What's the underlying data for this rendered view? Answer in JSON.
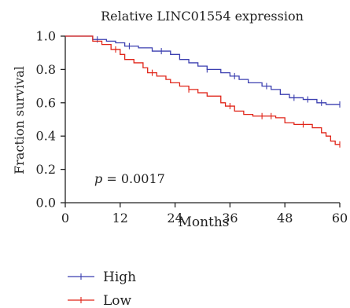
{
  "chart_data": {
    "type": "line",
    "title": "Relative LINC01554 expression",
    "xlabel": "Months",
    "ylabel": "Fraction survival",
    "xlim": [
      0,
      60
    ],
    "ylim": [
      0,
      1.0
    ],
    "xticks": [
      0,
      12,
      24,
      36,
      48,
      60
    ],
    "yticks": [
      0.0,
      0.2,
      0.4,
      0.6,
      0.8,
      1.0
    ],
    "x_tick_labels": [
      "0",
      "12",
      "24",
      "36",
      "48",
      "60"
    ],
    "y_tick_labels": [
      "0.0",
      "0.2",
      "0.4",
      "0.6",
      "0.8",
      "1.0"
    ],
    "annotation": {
      "p_symbol": "p",
      "text": " = 0.0017"
    },
    "legend_position": "bottom-left",
    "series": [
      {
        "name": "High",
        "color": "#3b3fb0",
        "steps": [
          [
            0,
            1.0
          ],
          [
            6,
            0.98
          ],
          [
            9,
            0.97
          ],
          [
            11,
            0.96
          ],
          [
            13,
            0.94
          ],
          [
            16,
            0.93
          ],
          [
            19,
            0.91
          ],
          [
            23,
            0.89
          ],
          [
            25,
            0.86
          ],
          [
            27,
            0.84
          ],
          [
            29,
            0.82
          ],
          [
            31,
            0.8
          ],
          [
            34,
            0.78
          ],
          [
            36,
            0.76
          ],
          [
            38,
            0.74
          ],
          [
            40,
            0.72
          ],
          [
            43,
            0.7
          ],
          [
            45,
            0.68
          ],
          [
            47,
            0.65
          ],
          [
            49,
            0.63
          ],
          [
            52,
            0.62
          ],
          [
            55,
            0.6
          ],
          [
            57,
            0.59
          ],
          [
            60,
            0.59
          ]
        ],
        "censor_x": [
          7,
          14,
          21,
          31,
          37,
          44,
          50,
          53,
          56,
          60
        ]
      },
      {
        "name": "Low",
        "color": "#e02418",
        "steps": [
          [
            0,
            1.0
          ],
          [
            6,
            0.97
          ],
          [
            8,
            0.95
          ],
          [
            10,
            0.92
          ],
          [
            12,
            0.89
          ],
          [
            13,
            0.86
          ],
          [
            15,
            0.84
          ],
          [
            17,
            0.81
          ],
          [
            18,
            0.78
          ],
          [
            20,
            0.76
          ],
          [
            22,
            0.74
          ],
          [
            23,
            0.72
          ],
          [
            25,
            0.7
          ],
          [
            27,
            0.68
          ],
          [
            29,
            0.66
          ],
          [
            31,
            0.64
          ],
          [
            34,
            0.6
          ],
          [
            35,
            0.58
          ],
          [
            37,
            0.55
          ],
          [
            39,
            0.53
          ],
          [
            41,
            0.52
          ],
          [
            46,
            0.51
          ],
          [
            48,
            0.48
          ],
          [
            50,
            0.47
          ],
          [
            54,
            0.45
          ],
          [
            56,
            0.42
          ],
          [
            57,
            0.4
          ],
          [
            58,
            0.37
          ],
          [
            59,
            0.35
          ],
          [
            60,
            0.35
          ]
        ],
        "censor_x": [
          11,
          19,
          27,
          36,
          43,
          45,
          52,
          60
        ]
      }
    ]
  }
}
